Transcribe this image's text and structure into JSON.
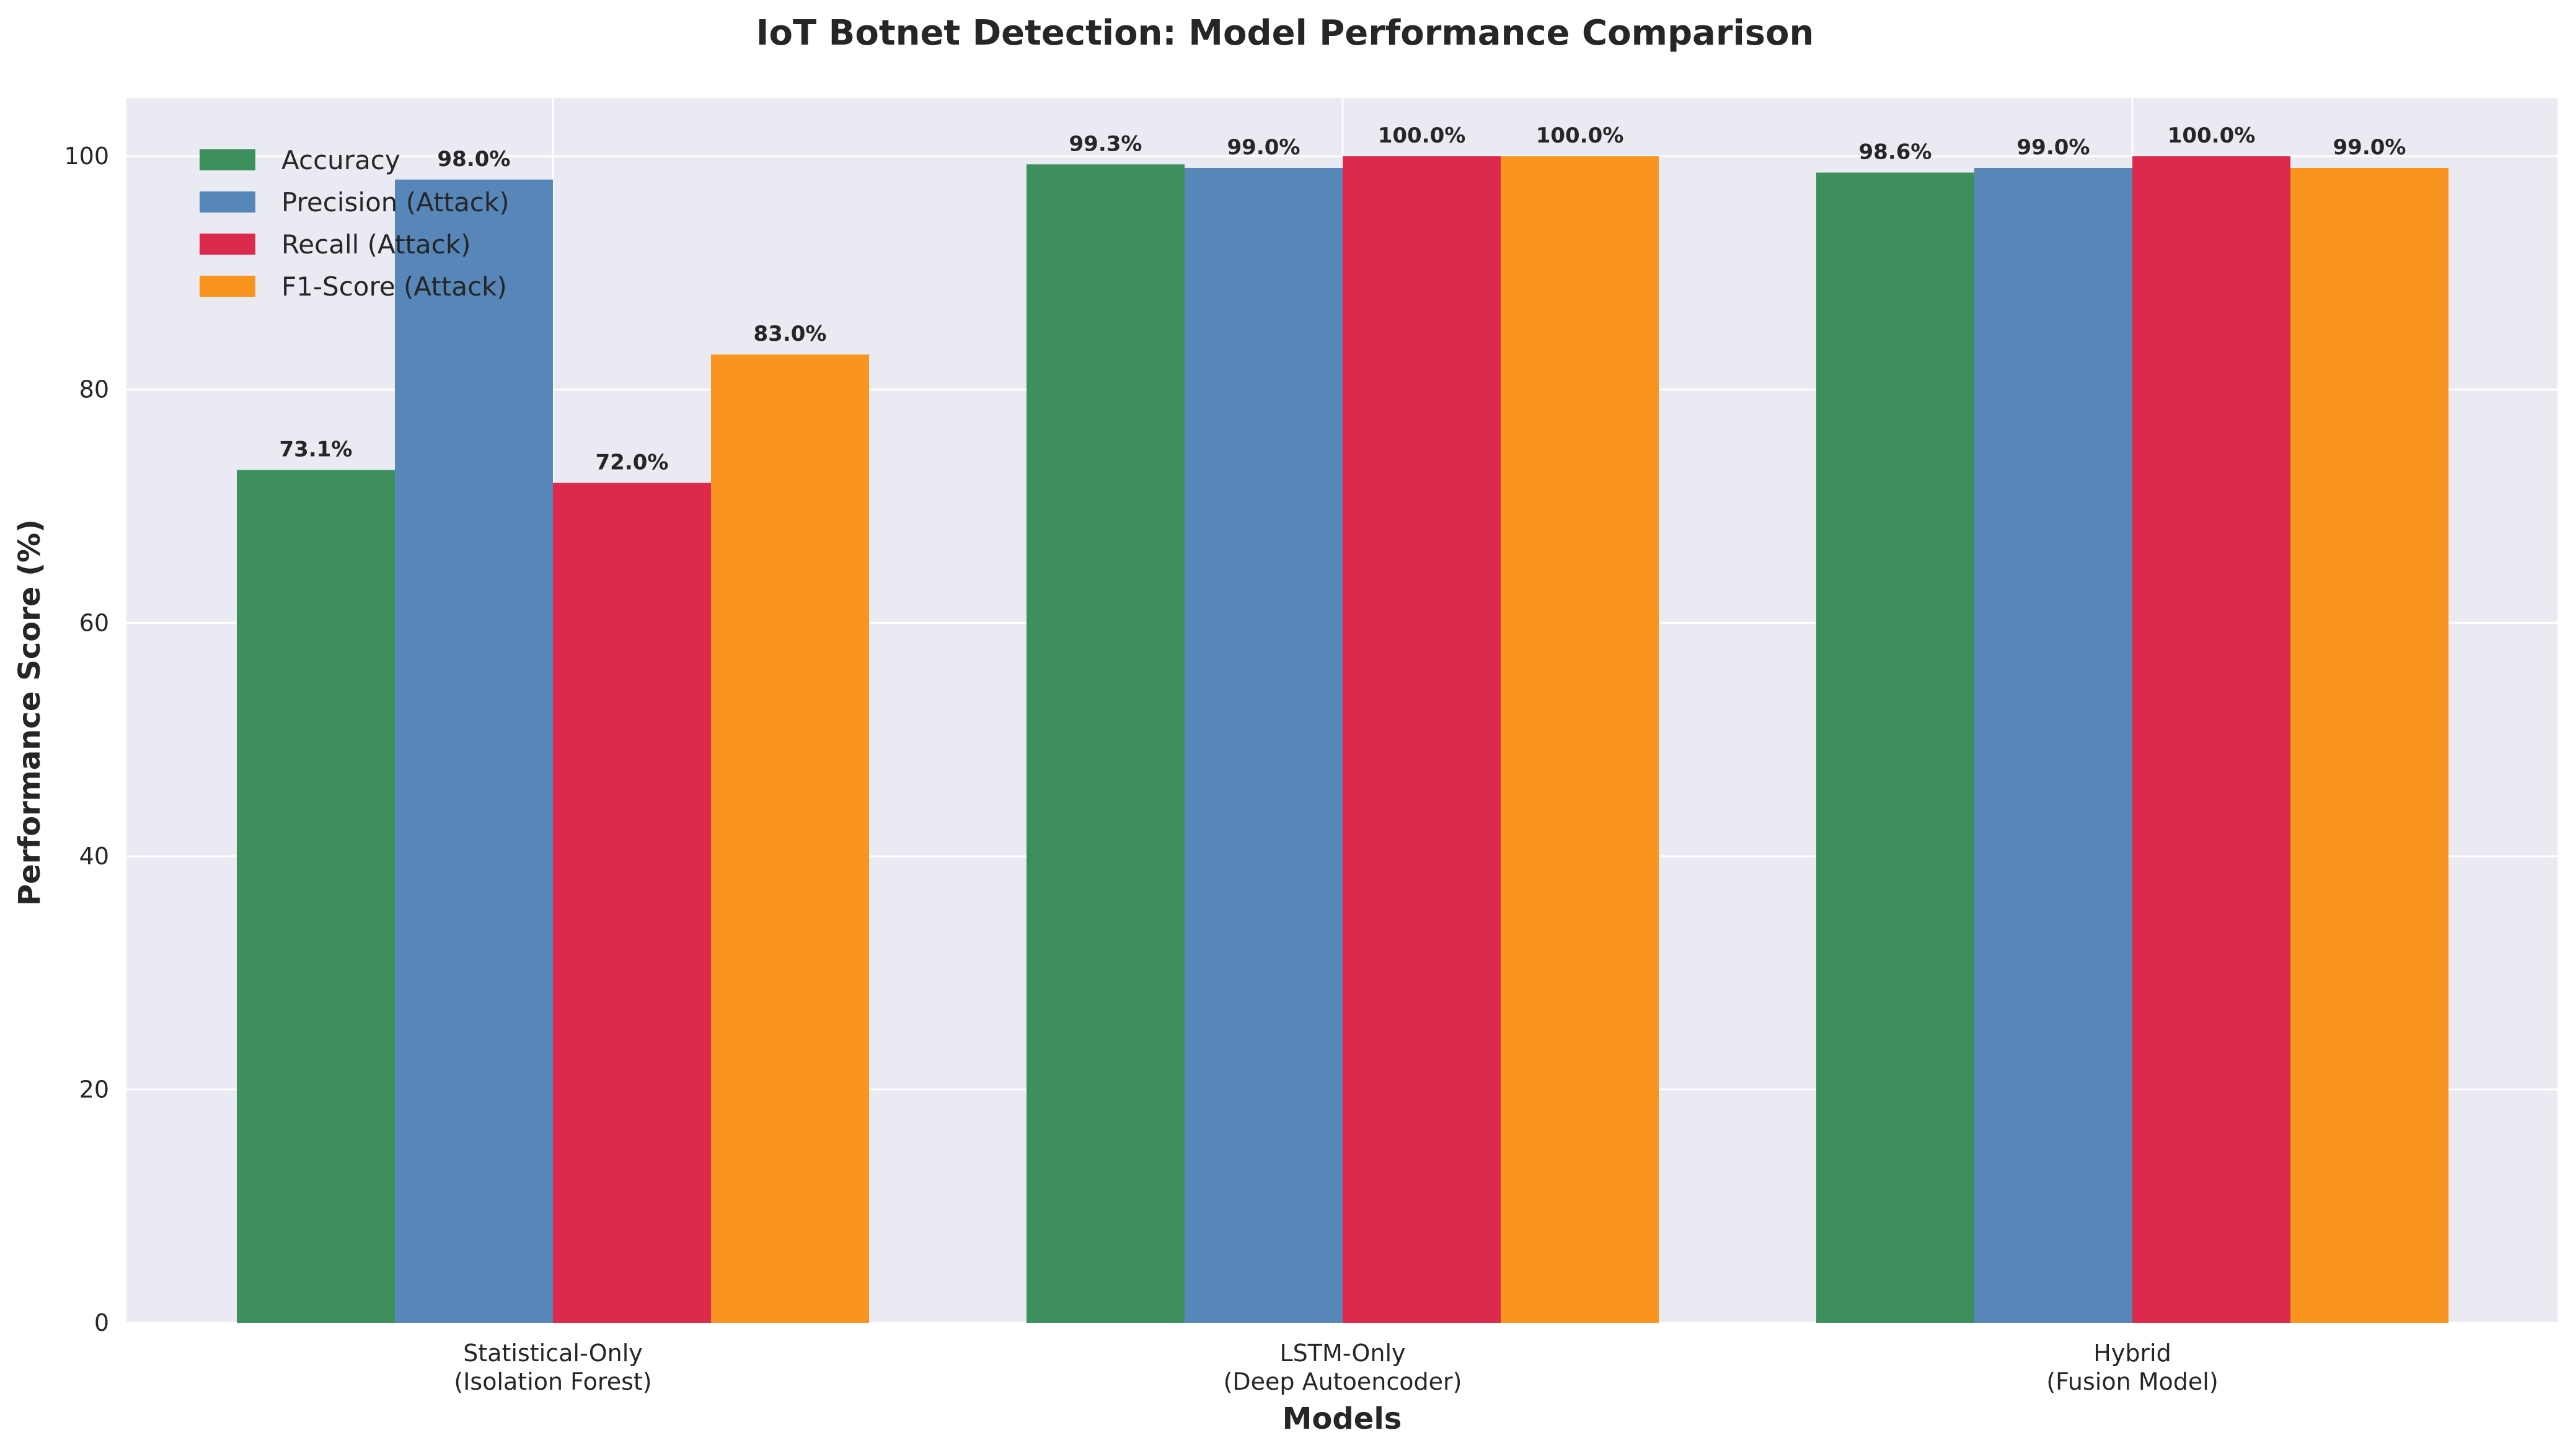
{
  "chart_data": {
    "type": "bar",
    "title": "IoT Botnet Detection: Model Performance Comparison",
    "xlabel": "Models",
    "ylabel": "Performance Score (%)",
    "ylim": [
      0,
      105
    ],
    "yticks": [
      "0",
      "20",
      "40",
      "60",
      "80",
      "100"
    ],
    "grid": true,
    "legend_position": "upper-left",
    "categories": [
      [
        "Statistical-Only",
        "(Isolation Forest)"
      ],
      [
        "LSTM-Only",
        "(Deep Autoencoder)"
      ],
      [
        "Hybrid",
        "(Fusion Model)"
      ]
    ],
    "series": [
      {
        "name": "Accuracy",
        "color": "#3e8f5e",
        "values": [
          73.1,
          99.3,
          98.6
        ],
        "labels": [
          "73.1%",
          "99.3%",
          "98.6%"
        ]
      },
      {
        "name": "Precision (Attack)",
        "color": "#5787b9",
        "values": [
          98.0,
          99.0,
          99.0
        ],
        "labels": [
          "98.0%",
          "99.0%",
          "99.0%"
        ]
      },
      {
        "name": "Recall (Attack)",
        "color": "#dc2a4c",
        "values": [
          72.0,
          100.0,
          100.0
        ],
        "labels": [
          "72.0%",
          "100.0%",
          "100.0%"
        ]
      },
      {
        "name": "F1-Score (Attack)",
        "color": "#f9951f",
        "values": [
          83.0,
          100.0,
          99.0
        ],
        "labels": [
          "83.0%",
          "100.0%",
          "99.0%"
        ]
      }
    ],
    "plot_background": "#eaeaf2",
    "grid_color": "#ffffff"
  }
}
